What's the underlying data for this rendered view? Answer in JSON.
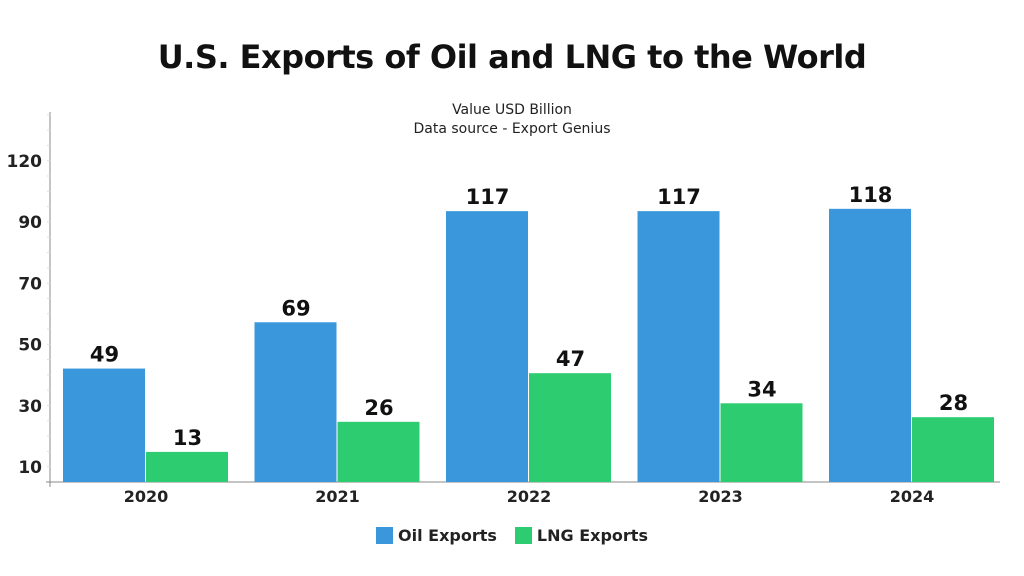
{
  "chart_data": {
    "type": "bar",
    "title": "U.S. Exports of Oil and LNG to the World",
    "subtitle": [
      "Value USD Billion",
      "Data source - Export Genius"
    ],
    "categories": [
      "2020",
      "2021",
      "2022",
      "2023",
      "2024"
    ],
    "series": [
      {
        "name": "Oil Exports",
        "color": "#3a97db",
        "values": [
          49,
          69,
          117,
          117,
          118
        ]
      },
      {
        "name": "LNG Exports",
        "color": "#2ecc71",
        "values": [
          13,
          26,
          47,
          34,
          28
        ]
      }
    ],
    "ytick_labels": [
      "10",
      "30",
      "50",
      "70",
      "90",
      "120"
    ],
    "xlabel": "",
    "ylabel": "",
    "ylim": [
      0,
      135
    ],
    "legend": "bottom-center",
    "grid": false
  }
}
